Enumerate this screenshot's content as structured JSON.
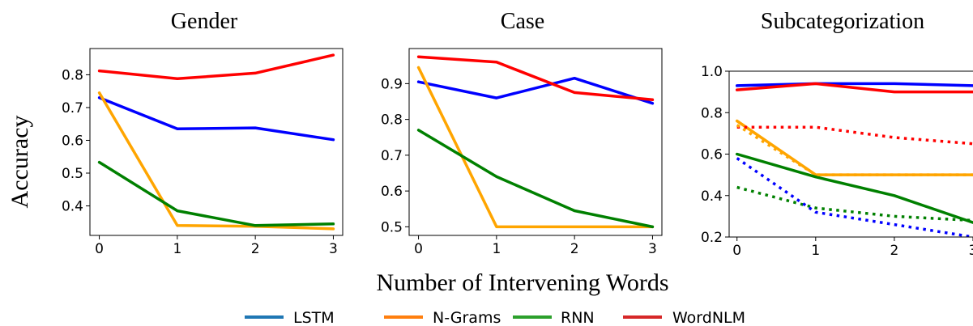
{
  "figure": {
    "ylabel": "Accuracy",
    "xlabel": "Number of Intervening Words"
  },
  "legend": {
    "items": [
      {
        "label": "LSTM",
        "color": "#1f77b4"
      },
      {
        "label": "N-Grams",
        "color": "#ff7f0e"
      },
      {
        "label": "RNN",
        "color": "#2ca02c"
      },
      {
        "label": "WordNLM",
        "color": "#d62728"
      }
    ]
  },
  "chart_data": [
    {
      "type": "line",
      "title": "Gender",
      "x": [
        0,
        1,
        2,
        3
      ],
      "xticks": [
        "0",
        "1",
        "2",
        "3"
      ],
      "xlim": [
        -0.12,
        3.12
      ],
      "ylim": [
        0.31,
        0.88
      ],
      "yticks": [
        0.4,
        0.5,
        0.6,
        0.7,
        0.8
      ],
      "ytick_labels": [
        "0.4",
        "0.5",
        "0.6",
        "0.7",
        "0.8"
      ],
      "series": [
        {
          "name": "LSTM",
          "color": "#0000ff",
          "style": "solid",
          "values": [
            0.73,
            0.635,
            0.638,
            0.602
          ]
        },
        {
          "name": "N-Grams",
          "color": "#ffa500",
          "style": "solid",
          "values": [
            0.745,
            0.34,
            0.338,
            0.33
          ]
        },
        {
          "name": "RNN",
          "color": "#008000",
          "style": "solid",
          "values": [
            0.533,
            0.385,
            0.34,
            0.345
          ]
        },
        {
          "name": "WordNLM",
          "color": "#ff0000",
          "style": "solid",
          "values": [
            0.812,
            0.788,
            0.805,
            0.86
          ]
        }
      ]
    },
    {
      "type": "line",
      "title": "Case",
      "x": [
        0,
        1,
        2,
        3
      ],
      "xticks": [
        "0",
        "1",
        "2",
        "3"
      ],
      "xlim": [
        -0.12,
        3.12
      ],
      "ylim": [
        0.476,
        0.998
      ],
      "yticks": [
        0.5,
        0.6,
        0.7,
        0.8,
        0.9
      ],
      "ytick_labels": [
        "0.5",
        "0.6",
        "0.7",
        "0.8",
        "0.9"
      ],
      "series": [
        {
          "name": "LSTM",
          "color": "#0000ff",
          "style": "solid",
          "values": [
            0.905,
            0.86,
            0.915,
            0.845
          ]
        },
        {
          "name": "N-Grams",
          "color": "#ffa500",
          "style": "solid",
          "values": [
            0.945,
            0.5,
            0.5,
            0.5
          ]
        },
        {
          "name": "RNN",
          "color": "#008000",
          "style": "solid",
          "values": [
            0.77,
            0.64,
            0.545,
            0.5
          ]
        },
        {
          "name": "WordNLM",
          "color": "#ff0000",
          "style": "solid",
          "values": [
            0.975,
            0.96,
            0.875,
            0.855
          ]
        }
      ]
    },
    {
      "type": "line",
      "title": "Subcategorization",
      "x": [
        0,
        1,
        2,
        3
      ],
      "xticks": [
        "0",
        "1",
        "2",
        "3"
      ],
      "xlim": [
        -0.1,
        3.0
      ],
      "ylim": [
        0.2,
        1.0
      ],
      "yticks": [
        0.2,
        0.4,
        0.6,
        0.8,
        1.0
      ],
      "ytick_labels": [
        "0.2",
        "0.4",
        "0.6",
        "0.8",
        "1.0"
      ],
      "series": [
        {
          "name": "LSTM",
          "color": "#0000ff",
          "style": "solid",
          "values": [
            0.93,
            0.94,
            0.94,
            0.93
          ]
        },
        {
          "name": "WordNLM",
          "color": "#ff0000",
          "style": "solid",
          "values": [
            0.91,
            0.94,
            0.9,
            0.9
          ]
        },
        {
          "name": "N-Grams",
          "color": "#ffa500",
          "style": "solid",
          "values": [
            0.76,
            0.5,
            0.5,
            0.5
          ]
        },
        {
          "name": "RNN",
          "color": "#008000",
          "style": "solid",
          "values": [
            0.6,
            0.49,
            0.4,
            0.27
          ]
        },
        {
          "name": "WordNLM",
          "color": "#ff0000",
          "style": "dotted",
          "values": [
            0.73,
            0.73,
            0.68,
            0.65
          ]
        },
        {
          "name": "N-Grams",
          "color": "#ffa500",
          "style": "dotted",
          "values": [
            0.74,
            0.5,
            0.5,
            0.5
          ]
        },
        {
          "name": "RNN",
          "color": "#008000",
          "style": "dotted",
          "values": [
            0.44,
            0.34,
            0.3,
            0.28
          ]
        },
        {
          "name": "LSTM",
          "color": "#0000ff",
          "style": "dotted",
          "values": [
            0.58,
            0.32,
            0.26,
            0.2
          ]
        }
      ]
    }
  ]
}
